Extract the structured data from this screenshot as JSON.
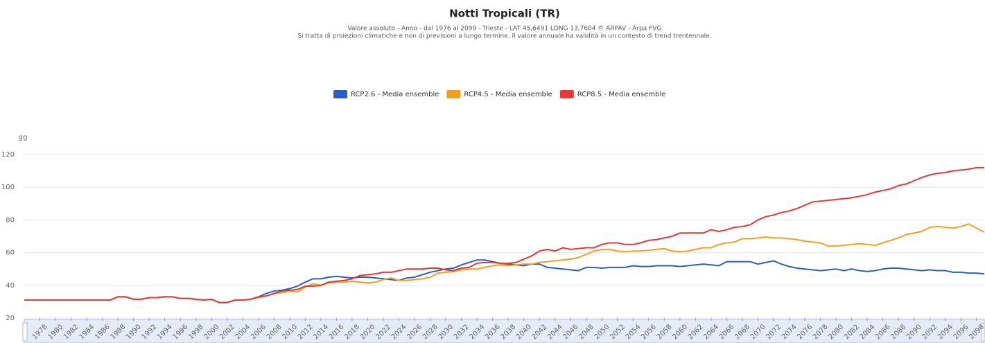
{
  "chart_data": {
    "type": "line",
    "title": "Notti Tropicali (TR)",
    "subtitle": "Valore assoluto  -  Anno  -  dal 1976 al 2099 - Trieste - LAT 45,6491 LONG 13,7604     © ARPAV - Arpa FVG",
    "subtitle2": "Si tratta di proiezioni climatiche e non di previsioni a lungo termine. Il valore annuale ha validità in un contesto di trend trentennale.",
    "y_label": "gg",
    "x": [
      1976,
      1977,
      1978,
      1979,
      1980,
      1981,
      1982,
      1983,
      1984,
      1985,
      1986,
      1987,
      1988,
      1989,
      1990,
      1991,
      1992,
      1993,
      1994,
      1995,
      1996,
      1997,
      1998,
      1999,
      2000,
      2001,
      2002,
      2003,
      2004,
      2005,
      2006,
      2007,
      2008,
      2009,
      2010,
      2011,
      2012,
      2013,
      2014,
      2015,
      2016,
      2017,
      2018,
      2019,
      2020,
      2021,
      2022,
      2023,
      2024,
      2025,
      2026,
      2027,
      2028,
      2029,
      2030,
      2031,
      2032,
      2033,
      2034,
      2035,
      2036,
      2037,
      2038,
      2039,
      2040,
      2041,
      2042,
      2043,
      2044,
      2045,
      2046,
      2047,
      2048,
      2049,
      2050,
      2051,
      2052,
      2053,
      2054,
      2055,
      2056,
      2057,
      2058,
      2059,
      2060,
      2061,
      2062,
      2063,
      2064,
      2065,
      2066,
      2067,
      2068,
      2069,
      2070,
      2071,
      2072,
      2073,
      2074,
      2075,
      2076,
      2077,
      2078,
      2079,
      2080,
      2081,
      2082,
      2083,
      2084,
      2085,
      2086,
      2087,
      2088,
      2089,
      2090,
      2091,
      2092,
      2093,
      2094,
      2095,
      2096,
      2097,
      2098,
      2099
    ],
    "xlim": [
      1976,
      2099
    ],
    "xticks": [
      1978,
      1980,
      1982,
      1984,
      1986,
      1988,
      1990,
      1992,
      1994,
      1996,
      1998,
      2000,
      2002,
      2004,
      2006,
      2008,
      2010,
      2012,
      2014,
      2016,
      2018,
      2020,
      2022,
      2024,
      2026,
      2028,
      2030,
      2032,
      2034,
      2036,
      2038,
      2040,
      2042,
      2044,
      2046,
      2048,
      2050,
      2052,
      2054,
      2056,
      2058,
      2060,
      2062,
      2064,
      2066,
      2068,
      2070,
      2072,
      2074,
      2076,
      2078,
      2080,
      2082,
      2084,
      2086,
      2088,
      2090,
      2092,
      2094,
      2096,
      2098
    ],
    "ylim": [
      20,
      120
    ],
    "yticks": [
      20,
      40,
      60,
      80,
      100,
      120
    ],
    "grid": true,
    "legend": "top",
    "series": [
      {
        "name": "RCP2.6 - Media ensemble",
        "color": "#2b5fbf",
        "values": [
          31,
          31,
          31,
          31,
          31,
          31,
          31,
          31,
          31,
          31,
          31,
          31,
          33,
          33,
          31.5,
          31.5,
          32.5,
          32.5,
          33,
          33,
          32,
          32,
          31.5,
          31,
          31.5,
          29.5,
          29.5,
          31,
          31,
          31.5,
          33,
          35,
          36.5,
          37,
          38,
          39.5,
          42,
          44,
          44,
          45,
          45.5,
          45,
          44.5,
          45,
          45,
          44.5,
          44,
          43.5,
          43,
          44.5,
          45,
          46.5,
          48,
          49,
          50,
          50.5,
          52.5,
          54,
          55.5,
          55.5,
          54.5,
          53.5,
          53,
          52.5,
          52,
          53,
          53,
          51,
          50.5,
          50,
          49.5,
          49,
          51,
          51,
          50.5,
          51,
          51,
          51,
          52,
          51.5,
          51.5,
          52,
          52,
          52,
          51.5,
          52,
          52.5,
          53,
          52.5,
          52,
          54.5,
          54.5,
          54.5,
          54.5,
          53,
          54,
          55,
          53,
          51.5,
          50.5,
          50,
          49.5,
          49,
          49.5,
          50,
          49,
          50,
          49,
          48.5,
          49,
          50,
          50.5,
          50.5,
          50,
          49.5,
          49,
          49.5,
          49,
          49,
          48,
          48,
          47.5,
          47.5,
          47
        ]
      },
      {
        "name": "RCP4.5 - Media ensemble",
        "color": "#f0a020",
        "values": [
          31,
          31,
          31,
          31,
          31,
          31,
          31,
          31,
          31,
          31,
          31,
          31,
          33,
          33,
          31.5,
          31.5,
          32.5,
          32.5,
          33,
          33,
          32,
          32,
          31.5,
          31,
          31.5,
          29.5,
          29.5,
          31,
          31,
          31.5,
          32.5,
          33.5,
          35,
          35.5,
          36.5,
          36,
          39,
          41,
          40,
          41.5,
          42,
          42,
          42.5,
          42,
          41.5,
          42,
          43.5,
          44.5,
          43,
          43,
          43.5,
          44,
          45,
          47.5,
          48,
          48.5,
          49.5,
          50,
          50,
          51,
          52,
          52.5,
          52,
          52.5,
          53,
          53,
          54,
          54.5,
          55,
          55.5,
          56,
          57,
          59,
          61,
          62,
          62,
          61,
          60.5,
          61,
          61,
          61.5,
          62,
          62.5,
          61,
          60.5,
          61,
          62,
          63,
          63,
          65,
          66,
          66.5,
          68.5,
          68.5,
          69,
          69.5,
          69,
          69,
          68.5,
          68,
          67,
          66.5,
          66,
          64,
          64,
          64.5,
          65,
          65.5,
          65,
          64.5,
          66,
          67.5,
          69,
          71,
          72,
          73,
          75.5,
          76,
          75.5,
          75,
          76,
          77.5,
          75,
          72.5
        ]
      },
      {
        "name": "RCP8.5 - Media ensemble",
        "color": "#e03a3a",
        "values": [
          31,
          31,
          31,
          31,
          31,
          31,
          31,
          31,
          31,
          31,
          31,
          31,
          33,
          33,
          31.5,
          31.5,
          32.5,
          32.5,
          33,
          33,
          32,
          32,
          31.5,
          31,
          31.5,
          29.5,
          29.5,
          31,
          31,
          31.5,
          33,
          33.5,
          35,
          36.5,
          37,
          37.5,
          39.5,
          39.5,
          40,
          42,
          42.5,
          43,
          44,
          46,
          46.5,
          47,
          48,
          48,
          49,
          50,
          50,
          50,
          50.5,
          50.5,
          49.5,
          49,
          50.5,
          51,
          53.5,
          54,
          54,
          53.5,
          53.5,
          54,
          56,
          58,
          61,
          62,
          61,
          63,
          62,
          62.5,
          63,
          63,
          65,
          66,
          66,
          65,
          65,
          66,
          67.5,
          68,
          69,
          70,
          72,
          72,
          72,
          72,
          74,
          73,
          74,
          75.5,
          76,
          77,
          80,
          82,
          83,
          84.5,
          85.5,
          87,
          89,
          91,
          91.5,
          92,
          92.5,
          93,
          93.5,
          94.5,
          95.5,
          97,
          98,
          99,
          101,
          102,
          104,
          106,
          107.5,
          108.5,
          109,
          110,
          110.5,
          111,
          112,
          112
        ]
      }
    ]
  }
}
